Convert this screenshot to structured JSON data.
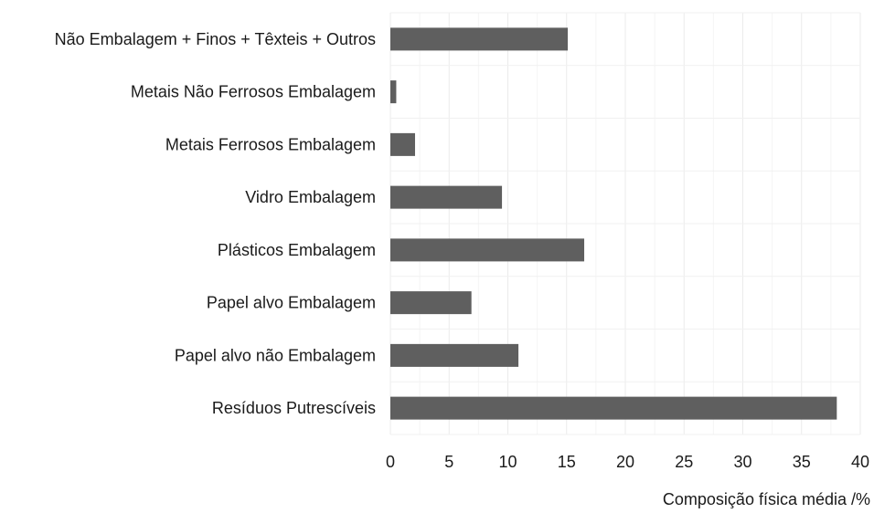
{
  "chart_data": {
    "type": "bar",
    "orientation": "horizontal",
    "categories": [
      "Não Embalagem + Finos + Têxteis + Outros",
      "Metais Não Ferrosos Embalagem",
      "Metais Ferrosos Embalagem",
      "Vidro Embalagem",
      "Plásticos Embalagem",
      "Papel alvo Embalagem",
      "Papel alvo não Embalagem",
      "Resíduos Putrescíveis"
    ],
    "values": [
      15.1,
      0.5,
      2.1,
      9.5,
      16.5,
      6.9,
      10.9,
      38.0
    ],
    "xlabel": "Composição física média /%",
    "ylabel": "",
    "xlim": [
      0,
      40
    ],
    "xticks": [
      0,
      5,
      10,
      15,
      20,
      25,
      30,
      35,
      40
    ],
    "grid": true,
    "legend": "none",
    "bar_color": "#5f5f5f",
    "grid_color": "#ebebeb"
  }
}
